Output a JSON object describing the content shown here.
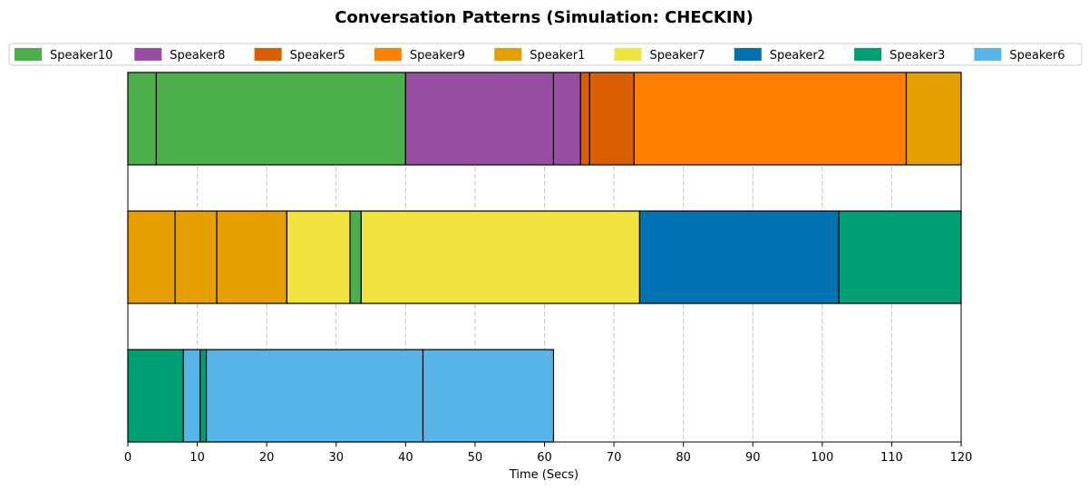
{
  "chart_data": {
    "type": "timeline",
    "title": "Conversation Patterns (Simulation: CHECKIN)",
    "xlabel": "Time (Secs)",
    "ylabel": "",
    "xlim": [
      0,
      120
    ],
    "xticks": [
      0,
      10,
      20,
      30,
      40,
      50,
      60,
      70,
      80,
      90,
      100,
      110,
      120
    ],
    "grid": "x-dashed",
    "legend_position": "top",
    "speakers": [
      {
        "name": "Speaker10",
        "color": "#4daf4a"
      },
      {
        "name": "Speaker8",
        "color": "#984ea3"
      },
      {
        "name": "Speaker5",
        "color": "#d95f02"
      },
      {
        "name": "Speaker9",
        "color": "#ff7f00"
      },
      {
        "name": "Speaker1",
        "color": "#e69f00"
      },
      {
        "name": "Speaker7",
        "color": "#f0e442"
      },
      {
        "name": "Speaker2",
        "color": "#0072b2"
      },
      {
        "name": "Speaker3",
        "color": "#009e73"
      },
      {
        "name": "Speaker6",
        "color": "#56b4e9"
      }
    ],
    "rows": [
      {
        "segments": [
          {
            "speaker": "Speaker10",
            "start": 0,
            "end": 4.1
          },
          {
            "speaker": "Speaker10",
            "start": 4.1,
            "end": 40.0
          },
          {
            "speaker": "Speaker8",
            "start": 40.0,
            "end": 61.3
          },
          {
            "speaker": "Speaker8",
            "start": 61.3,
            "end": 65.2
          },
          {
            "speaker": "Speaker5",
            "start": 65.2,
            "end": 66.5
          },
          {
            "speaker": "Speaker5",
            "start": 66.5,
            "end": 72.9
          },
          {
            "speaker": "Speaker9",
            "start": 72.9,
            "end": 112.1
          },
          {
            "speaker": "Speaker1",
            "start": 112.1,
            "end": 120.0
          }
        ]
      },
      {
        "segments": [
          {
            "speaker": "Speaker1",
            "start": 0,
            "end": 6.8
          },
          {
            "speaker": "Speaker1",
            "start": 6.8,
            "end": 12.8
          },
          {
            "speaker": "Speaker1",
            "start": 12.8,
            "end": 22.9
          },
          {
            "speaker": "Speaker7",
            "start": 22.9,
            "end": 32.0
          },
          {
            "speaker": "Speaker10",
            "start": 32.0,
            "end": 33.6
          },
          {
            "speaker": "Speaker7",
            "start": 33.6,
            "end": 73.7
          },
          {
            "speaker": "Speaker2",
            "start": 73.7,
            "end": 102.4
          },
          {
            "speaker": "Speaker3",
            "start": 102.4,
            "end": 120.0
          }
        ]
      },
      {
        "segments": [
          {
            "speaker": "Speaker3",
            "start": 0,
            "end": 8.0
          },
          {
            "speaker": "Speaker6",
            "start": 8.0,
            "end": 10.4
          },
          {
            "speaker": "Speaker3",
            "start": 10.4,
            "end": 11.3
          },
          {
            "speaker": "Speaker6",
            "start": 11.3,
            "end": 42.5
          },
          {
            "speaker": "Speaker6",
            "start": 42.5,
            "end": 61.3
          }
        ]
      }
    ]
  }
}
